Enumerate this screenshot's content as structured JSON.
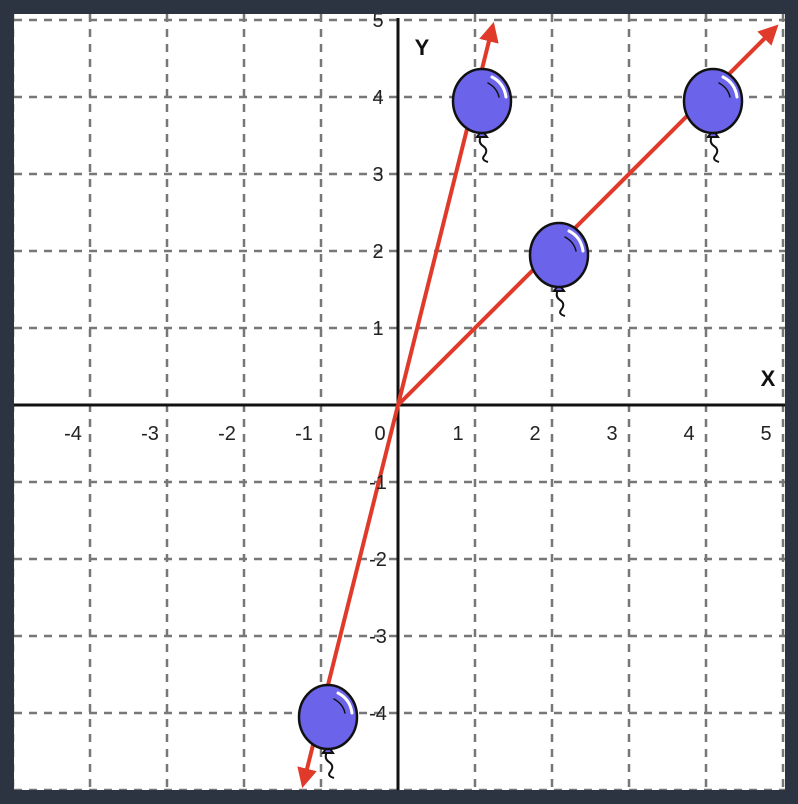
{
  "chart_data": {
    "type": "scatter",
    "title": "",
    "xlabel": "X",
    "ylabel": "Y",
    "xlim": [
      -5,
      5
    ],
    "ylim": [
      -5,
      5
    ],
    "grid": true,
    "grid_style": "dashed",
    "x_ticks": [
      "-4",
      "-3",
      "-2",
      "-1",
      "0",
      "1",
      "2",
      "3",
      "4",
      "5"
    ],
    "y_ticks": [
      "-4",
      "-3",
      "-2",
      "-1",
      "1",
      "2",
      "3",
      "4",
      "5"
    ],
    "lines": [
      {
        "direction": [
          1,
          4
        ],
        "passes_through": [
          0,
          0
        ],
        "extends": "both",
        "color": "#e03a2a"
      },
      {
        "direction": [
          1,
          1
        ],
        "passes_through": [
          0,
          0
        ],
        "extends": "positive",
        "color": "#e03a2a"
      }
    ],
    "markers": [
      {
        "x": 1,
        "y": 4,
        "icon": "balloon-icon"
      },
      {
        "x": 2,
        "y": 2,
        "icon": "balloon-icon"
      },
      {
        "x": 4,
        "y": 4,
        "icon": "balloon-icon"
      },
      {
        "x": -1,
        "y": -4,
        "icon": "balloon-icon"
      }
    ],
    "colors": {
      "line": "#e03a2a",
      "balloon": "#6b63ea",
      "axis": "#111111",
      "grid": "#777777"
    }
  }
}
